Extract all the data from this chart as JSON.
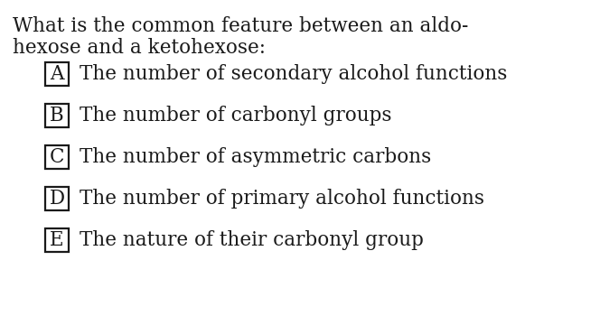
{
  "background_color": "#ffffff",
  "question_line1": "What is the common feature between an aldo-",
  "question_line2": "hexose and a ketohexose:",
  "options": [
    {
      "label": "A",
      "text": "The number of secondary alcohol functions"
    },
    {
      "label": "B",
      "text": "The number of carbonyl groups"
    },
    {
      "label": "C",
      "text": "The number of asymmetric carbons"
    },
    {
      "label": "D",
      "text": "The number of primary alcohol functions"
    },
    {
      "label": "E",
      "text": "The nature of their carbonyl group"
    }
  ],
  "question_fontsize": 15.5,
  "option_fontsize": 15.5,
  "label_fontsize": 15.5,
  "text_color": "#1a1a1a",
  "box_color": "#1a1a1a",
  "font_family": "serif",
  "fig_width": 6.64,
  "fig_height": 3.5,
  "dpi": 100
}
